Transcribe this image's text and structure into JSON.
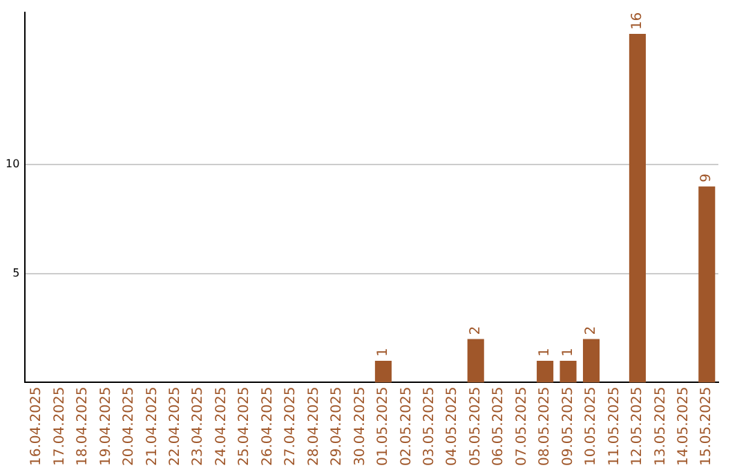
{
  "chart_data": {
    "type": "bar",
    "categories": [
      "16.04.2025",
      "17.04.2025",
      "18.04.2025",
      "19.04.2025",
      "20.04.2025",
      "21.04.2025",
      "22.04.2025",
      "23.04.2025",
      "24.04.2025",
      "25.04.2025",
      "26.04.2025",
      "27.04.2025",
      "28.04.2025",
      "29.04.2025",
      "30.04.2025",
      "01.05.2025",
      "02.05.2025",
      "03.05.2025",
      "04.05.2025",
      "05.05.2025",
      "06.05.2025",
      "07.05.2025",
      "08.05.2025",
      "09.05.2025",
      "10.05.2025",
      "11.05.2025",
      "12.05.2025",
      "13.05.2025",
      "14.05.2025",
      "15.05.2025"
    ],
    "values": [
      0,
      0,
      0,
      0,
      0,
      0,
      0,
      0,
      0,
      0,
      0,
      0,
      0,
      0,
      0,
      1,
      0,
      0,
      0,
      2,
      0,
      0,
      1,
      1,
      2,
      0,
      16,
      0,
      0,
      9
    ],
    "value_labels": [
      null,
      null,
      null,
      null,
      null,
      null,
      null,
      null,
      null,
      null,
      null,
      null,
      null,
      null,
      null,
      "1",
      null,
      null,
      null,
      "2",
      null,
      null,
      "1",
      "1",
      "2",
      null,
      "16",
      null,
      null,
      "9"
    ],
    "color": "#a0572a",
    "ylim": [
      0,
      17
    ],
    "yticks": [
      5,
      10
    ],
    "grid": "y",
    "legend": false
  }
}
